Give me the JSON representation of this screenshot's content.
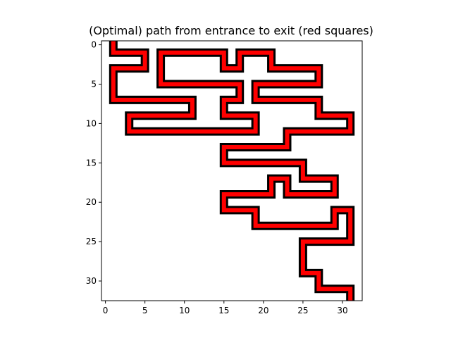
{
  "chart_data": {
    "type": "line",
    "title": "(Optimal) path from entrance to exit (red squares)",
    "xlabel": "",
    "ylabel": "",
    "xlim": [
      -0.5,
      32.5
    ],
    "ylim": [
      32.5,
      -0.5
    ],
    "y_inverted": true,
    "aspect": "equal",
    "grid": false,
    "x_ticks": [
      0,
      5,
      10,
      15,
      20,
      25,
      30
    ],
    "y_ticks": [
      0,
      5,
      10,
      15,
      20,
      25,
      30
    ],
    "colors": {
      "path_fill": "#ff0000",
      "path_outline": "#000000",
      "axes": "#000000",
      "background": "#ffffff"
    },
    "series": [
      {
        "points": [
          [
            1,
            -0.5
          ],
          [
            1,
            1
          ],
          [
            5,
            1
          ],
          [
            5,
            3
          ],
          [
            1,
            3
          ],
          [
            1,
            7
          ],
          [
            11,
            7
          ],
          [
            11,
            9
          ],
          [
            3,
            9
          ],
          [
            3,
            11
          ],
          [
            19,
            11
          ],
          [
            19,
            9
          ],
          [
            15,
            9
          ],
          [
            15,
            7
          ],
          [
            17,
            7
          ],
          [
            17,
            5
          ],
          [
            7,
            5
          ],
          [
            7,
            1
          ],
          [
            15,
            1
          ],
          [
            15,
            3
          ],
          [
            17,
            3
          ],
          [
            17,
            1
          ],
          [
            21,
            1
          ],
          [
            21,
            3
          ],
          [
            27,
            3
          ],
          [
            27,
            5
          ],
          [
            19,
            5
          ],
          [
            19,
            7
          ],
          [
            27,
            7
          ],
          [
            27,
            9
          ],
          [
            31,
            9
          ],
          [
            31,
            11
          ],
          [
            23,
            11
          ],
          [
            23,
            13
          ],
          [
            15,
            13
          ],
          [
            15,
            15
          ],
          [
            25,
            15
          ],
          [
            25,
            17
          ],
          [
            29,
            17
          ],
          [
            29,
            19
          ],
          [
            23,
            19
          ],
          [
            23,
            17
          ],
          [
            21,
            17
          ],
          [
            21,
            19
          ],
          [
            15,
            19
          ],
          [
            15,
            21
          ],
          [
            19,
            21
          ],
          [
            19,
            23
          ],
          [
            29,
            23
          ],
          [
            29,
            21
          ],
          [
            31,
            21
          ],
          [
            31,
            25
          ],
          [
            25,
            25
          ],
          [
            25,
            29
          ],
          [
            27,
            29
          ],
          [
            27,
            31
          ],
          [
            31,
            31
          ],
          [
            31,
            32.5
          ]
        ]
      }
    ]
  }
}
